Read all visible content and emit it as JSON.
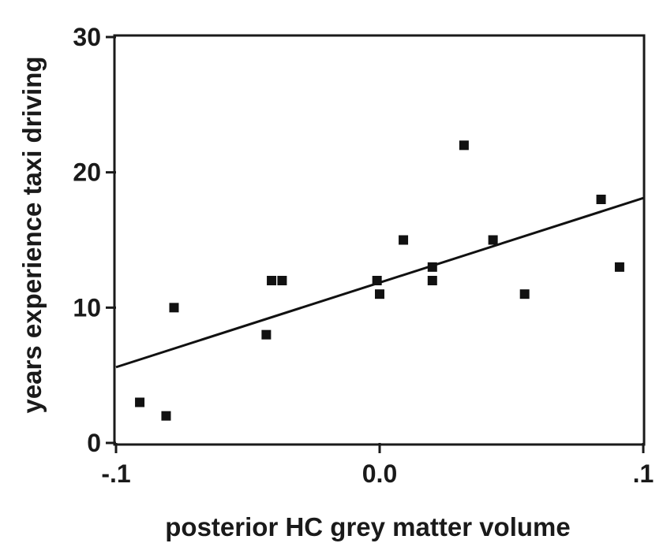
{
  "chart_data": {
    "type": "scatter",
    "title": "",
    "xlabel": "posterior HC grey matter volume",
    "ylabel": "years experience taxi driving",
    "xlim": [
      -0.1,
      0.1
    ],
    "ylim": [
      0,
      30
    ],
    "x_ticks": [
      -0.1,
      0.0,
      0.1
    ],
    "x_tick_labels": [
      "-.1",
      "0.0",
      ".1"
    ],
    "y_ticks": [
      0,
      10,
      20,
      30
    ],
    "y_tick_labels": [
      "0",
      "10",
      "20",
      "30"
    ],
    "grid": false,
    "legend": "none",
    "series": [
      {
        "points": [
          {
            "x": -0.091,
            "y": 3
          },
          {
            "x": -0.081,
            "y": 2
          },
          {
            "x": -0.078,
            "y": 10
          },
          {
            "x": -0.043,
            "y": 8
          },
          {
            "x": -0.041,
            "y": 12
          },
          {
            "x": -0.037,
            "y": 12
          },
          {
            "x": -0.001,
            "y": 12
          },
          {
            "x": 0.0,
            "y": 11
          },
          {
            "x": 0.009,
            "y": 15
          },
          {
            "x": 0.02,
            "y": 13
          },
          {
            "x": 0.02,
            "y": 12
          },
          {
            "x": 0.032,
            "y": 22
          },
          {
            "x": 0.043,
            "y": 15
          },
          {
            "x": 0.055,
            "y": 11
          },
          {
            "x": 0.084,
            "y": 18
          },
          {
            "x": 0.091,
            "y": 13
          }
        ]
      }
    ],
    "fit_line": {
      "x": [
        -0.1,
        0.1
      ],
      "y": [
        5.6,
        18.1
      ]
    },
    "marker_color": "#111111",
    "line_color": "#111111"
  }
}
